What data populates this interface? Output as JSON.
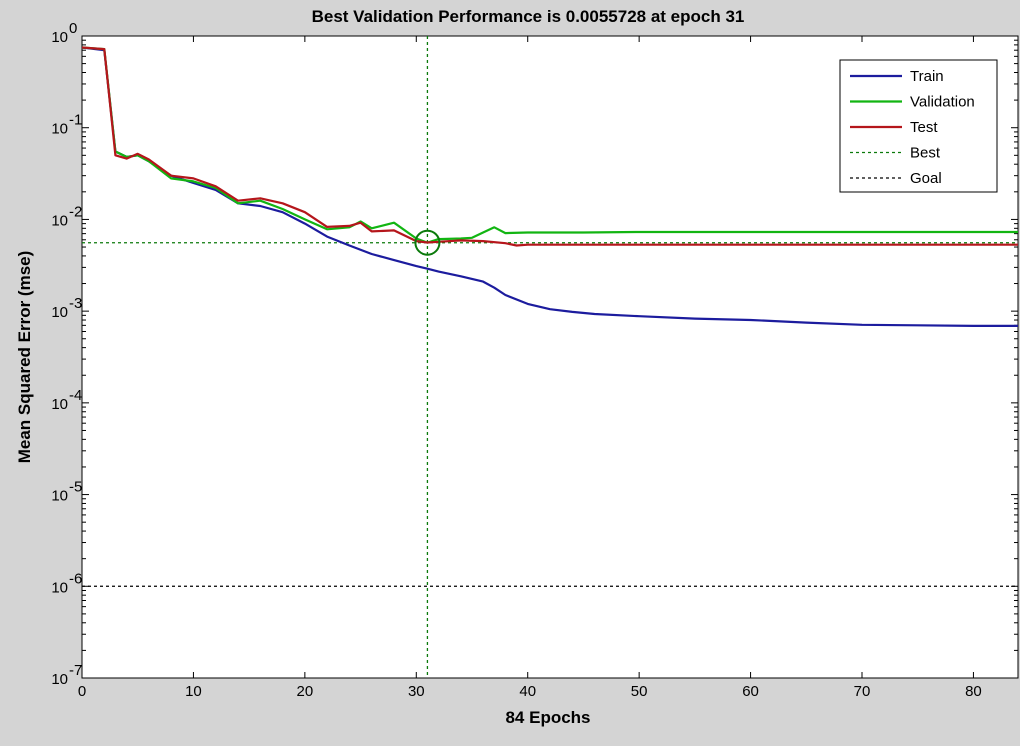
{
  "chart_data": {
    "type": "line",
    "title": "Best Validation Performance is 0.0055728 at epoch 31",
    "xlabel": "84 Epochs",
    "ylabel": "Mean Squared Error  (mse)",
    "xlim": [
      0,
      84
    ],
    "ylim": [
      1e-07,
      1
    ],
    "yscale": "log",
    "x_ticks": [
      0,
      10,
      20,
      30,
      40,
      50,
      60,
      70,
      80
    ],
    "y_ticks": [
      {
        "value": 1e-07,
        "base": "10",
        "exp": "-7"
      },
      {
        "value": 1e-06,
        "base": "10",
        "exp": "-6"
      },
      {
        "value": 1e-05,
        "base": "10",
        "exp": "-5"
      },
      {
        "value": 0.0001,
        "base": "10",
        "exp": "-4"
      },
      {
        "value": 0.001,
        "base": "10",
        "exp": "-3"
      },
      {
        "value": 0.01,
        "base": "10",
        "exp": "-2"
      },
      {
        "value": 0.1,
        "base": "10",
        "exp": "-1"
      },
      {
        "value": 1,
        "base": "10",
        "exp": "0"
      }
    ],
    "legend_position": "top-right",
    "series": [
      {
        "name": "Train",
        "color": "#1c1c9e",
        "style": "solid",
        "x": [
          0,
          2,
          3,
          4,
          5,
          6,
          8,
          10,
          12,
          14,
          16,
          18,
          20,
          22,
          24,
          26,
          28,
          30,
          31,
          32,
          34,
          36,
          37,
          38,
          40,
          42,
          44,
          46,
          50,
          55,
          60,
          65,
          70,
          75,
          80,
          84
        ],
        "y": [
          0.75,
          0.7,
          0.055,
          0.048,
          0.05,
          0.043,
          0.03,
          0.025,
          0.021,
          0.015,
          0.014,
          0.012,
          0.009,
          0.0065,
          0.0052,
          0.0042,
          0.0036,
          0.0031,
          0.0029,
          0.0027,
          0.0024,
          0.0021,
          0.0018,
          0.0015,
          0.0012,
          0.00105,
          0.00098,
          0.00093,
          0.00088,
          0.00083,
          0.0008,
          0.00075,
          0.00071,
          0.0007,
          0.00069,
          0.00069
        ]
      },
      {
        "name": "Validation",
        "color": "#12b512",
        "style": "solid",
        "x": [
          0,
          2,
          3,
          4,
          5,
          6,
          8,
          10,
          12,
          14,
          16,
          18,
          20,
          22,
          24,
          25,
          26,
          28,
          30,
          31,
          32,
          34,
          35,
          36,
          37,
          38,
          40,
          45,
          50,
          60,
          70,
          80,
          84
        ],
        "y": [
          0.75,
          0.72,
          0.055,
          0.048,
          0.05,
          0.043,
          0.028,
          0.026,
          0.022,
          0.015,
          0.016,
          0.013,
          0.01,
          0.0078,
          0.0082,
          0.0095,
          0.008,
          0.0092,
          0.0062,
          0.0055728,
          0.0061,
          0.0062,
          0.0063,
          0.0072,
          0.0082,
          0.0071,
          0.0072,
          0.0072,
          0.0073,
          0.0073,
          0.0073,
          0.0073,
          0.0073
        ]
      },
      {
        "name": "Test",
        "color": "#b5161b",
        "style": "solid",
        "x": [
          0,
          2,
          3,
          4,
          5,
          6,
          8,
          10,
          12,
          14,
          16,
          18,
          20,
          22,
          24,
          25,
          26,
          28,
          30,
          31,
          32,
          34,
          36,
          38,
          39,
          40,
          50,
          60,
          70,
          80,
          84
        ],
        "y": [
          0.75,
          0.72,
          0.05,
          0.046,
          0.052,
          0.045,
          0.03,
          0.028,
          0.023,
          0.016,
          0.017,
          0.015,
          0.012,
          0.0083,
          0.0085,
          0.0092,
          0.0074,
          0.0076,
          0.0058,
          0.0056,
          0.0057,
          0.0059,
          0.0058,
          0.0055,
          0.0052,
          0.0053,
          0.0053,
          0.0053,
          0.0053,
          0.0053,
          0.0053
        ]
      },
      {
        "name": "Best",
        "color": "#0b7a0b",
        "style": "dashed"
      },
      {
        "name": "Goal",
        "color": "#000000",
        "style": "dashed"
      }
    ],
    "best": {
      "epoch": 31,
      "value": 0.0055728
    },
    "goal": 1e-06
  }
}
